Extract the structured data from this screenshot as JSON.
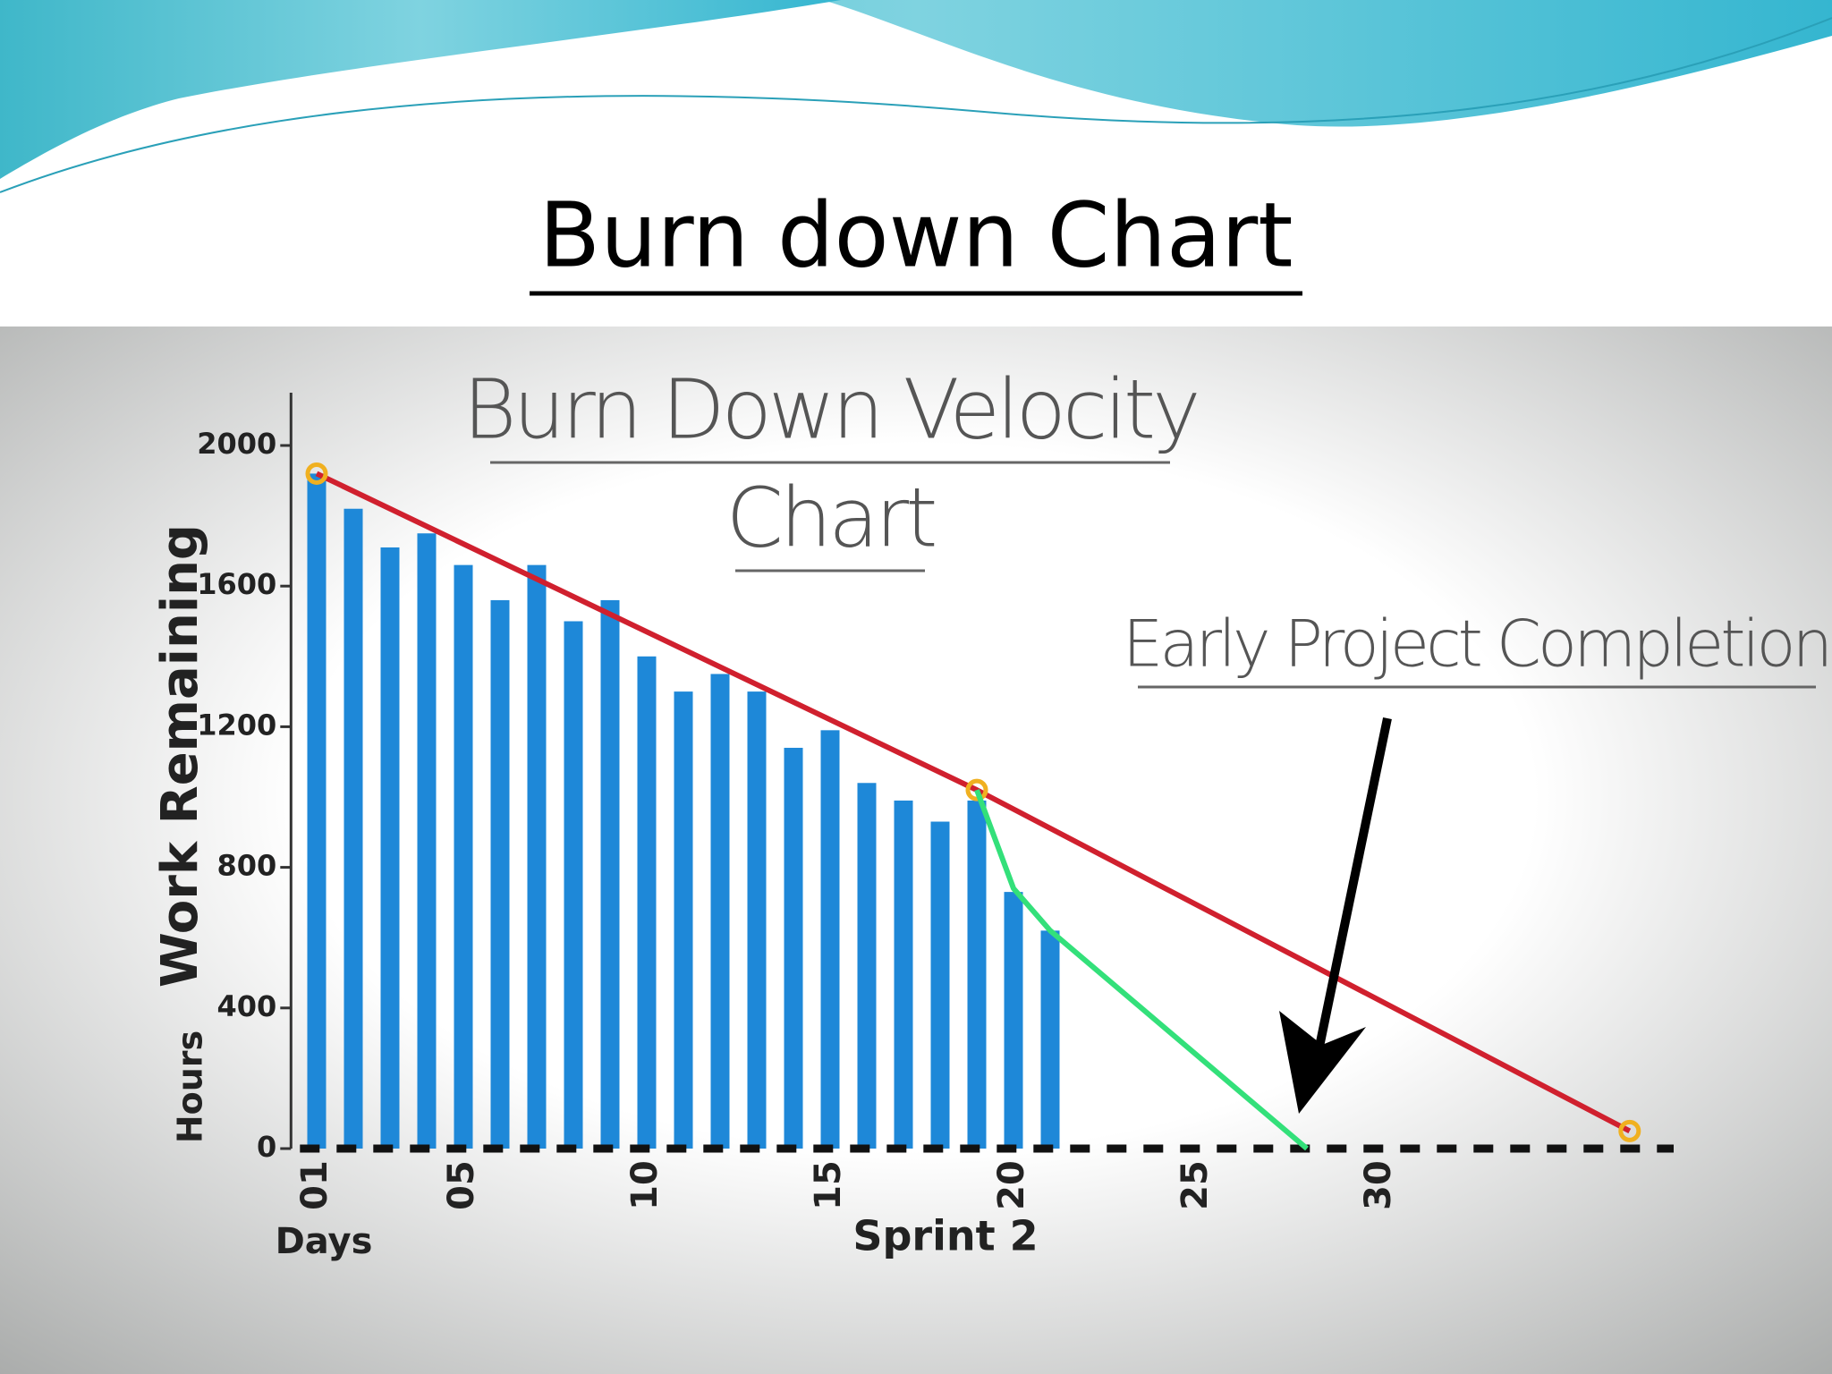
{
  "slide_title": "Burn down Chart",
  "chart_data": {
    "type": "bar",
    "title_lines": [
      "Burn Down Velocity",
      "Chart"
    ],
    "ylabel": "Work Remaining",
    "ylabel_unit": "Hours",
    "xlabel": "Days",
    "sprint_label": "Sprint 2",
    "annotation": "Early Project Completion",
    "x": [
      1,
      2,
      3,
      4,
      5,
      6,
      7,
      8,
      9,
      10,
      11,
      12,
      13,
      14,
      15,
      16,
      17,
      18,
      19,
      20,
      21
    ],
    "values": [
      1920,
      1820,
      1710,
      1750,
      1660,
      1560,
      1660,
      1500,
      1560,
      1400,
      1300,
      1350,
      1300,
      1140,
      1190,
      1040,
      990,
      930,
      990,
      730,
      620
    ],
    "color": "#1e88d8",
    "xlim": [
      0.3,
      38
    ],
    "ylim": [
      0,
      2150
    ],
    "xticks": [
      {
        "value": 1,
        "label": "01"
      },
      {
        "value": 5,
        "label": "05"
      },
      10,
      15,
      20,
      25,
      30
    ],
    "yticks": [
      0,
      400,
      800,
      1200,
      1600,
      2000
    ],
    "overlays": [
      {
        "type": "line",
        "color": "#d0202e",
        "markers": true,
        "x": [
          1,
          19,
          36.8
        ],
        "values": [
          1920,
          1020,
          50
        ]
      },
      {
        "type": "line",
        "color": "#33e07a",
        "markers": false,
        "x": [
          19,
          20,
          21,
          28
        ],
        "values": [
          1020,
          740,
          620,
          0
        ]
      }
    ]
  }
}
